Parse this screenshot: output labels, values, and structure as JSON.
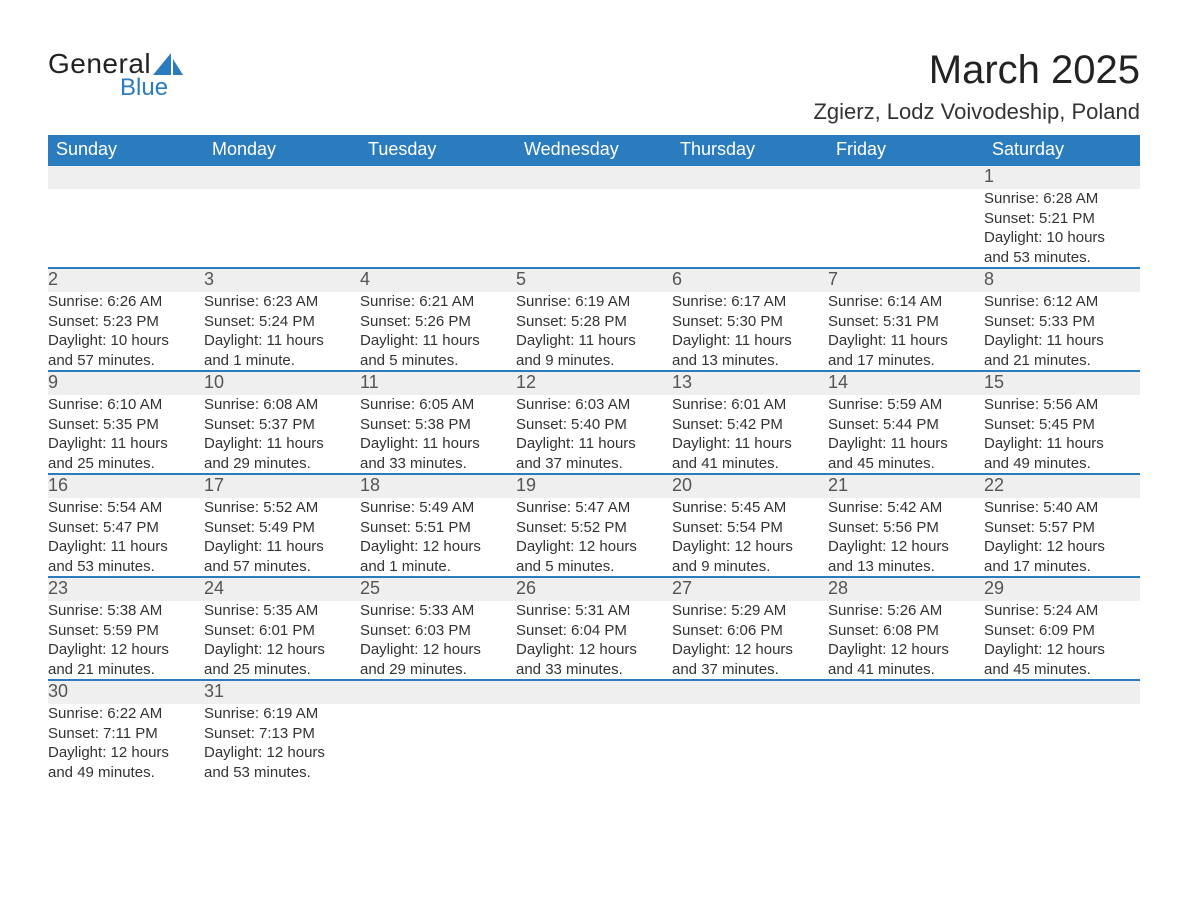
{
  "logo": {
    "general": "General",
    "blue": "Blue",
    "shape_color": "#2b7bbf"
  },
  "header": {
    "title": "March 2025",
    "location": "Zgierz, Lodz Voivodeship, Poland",
    "title_fontsize": 40,
    "location_fontsize": 22
  },
  "style": {
    "header_bg": "#2b7bbf",
    "header_text": "#ffffff",
    "daynum_bg": "#efefef",
    "daynum_border": "#2b7bbf",
    "body_text": "#333333",
    "background": "#ffffff",
    "font_family": "Arial, Helvetica, sans-serif",
    "th_fontsize": 18,
    "daynum_fontsize": 18,
    "detail_fontsize": 15
  },
  "weekdays": [
    "Sunday",
    "Monday",
    "Tuesday",
    "Wednesday",
    "Thursday",
    "Friday",
    "Saturday"
  ],
  "weeks": [
    [
      null,
      null,
      null,
      null,
      null,
      null,
      {
        "day": "1",
        "sunrise": "Sunrise: 6:28 AM",
        "sunset": "Sunset: 5:21 PM",
        "dl1": "Daylight: 10 hours",
        "dl2": "and 53 minutes."
      }
    ],
    [
      {
        "day": "2",
        "sunrise": "Sunrise: 6:26 AM",
        "sunset": "Sunset: 5:23 PM",
        "dl1": "Daylight: 10 hours",
        "dl2": "and 57 minutes."
      },
      {
        "day": "3",
        "sunrise": "Sunrise: 6:23 AM",
        "sunset": "Sunset: 5:24 PM",
        "dl1": "Daylight: 11 hours",
        "dl2": "and 1 minute."
      },
      {
        "day": "4",
        "sunrise": "Sunrise: 6:21 AM",
        "sunset": "Sunset: 5:26 PM",
        "dl1": "Daylight: 11 hours",
        "dl2": "and 5 minutes."
      },
      {
        "day": "5",
        "sunrise": "Sunrise: 6:19 AM",
        "sunset": "Sunset: 5:28 PM",
        "dl1": "Daylight: 11 hours",
        "dl2": "and 9 minutes."
      },
      {
        "day": "6",
        "sunrise": "Sunrise: 6:17 AM",
        "sunset": "Sunset: 5:30 PM",
        "dl1": "Daylight: 11 hours",
        "dl2": "and 13 minutes."
      },
      {
        "day": "7",
        "sunrise": "Sunrise: 6:14 AM",
        "sunset": "Sunset: 5:31 PM",
        "dl1": "Daylight: 11 hours",
        "dl2": "and 17 minutes."
      },
      {
        "day": "8",
        "sunrise": "Sunrise: 6:12 AM",
        "sunset": "Sunset: 5:33 PM",
        "dl1": "Daylight: 11 hours",
        "dl2": "and 21 minutes."
      }
    ],
    [
      {
        "day": "9",
        "sunrise": "Sunrise: 6:10 AM",
        "sunset": "Sunset: 5:35 PM",
        "dl1": "Daylight: 11 hours",
        "dl2": "and 25 minutes."
      },
      {
        "day": "10",
        "sunrise": "Sunrise: 6:08 AM",
        "sunset": "Sunset: 5:37 PM",
        "dl1": "Daylight: 11 hours",
        "dl2": "and 29 minutes."
      },
      {
        "day": "11",
        "sunrise": "Sunrise: 6:05 AM",
        "sunset": "Sunset: 5:38 PM",
        "dl1": "Daylight: 11 hours",
        "dl2": "and 33 minutes."
      },
      {
        "day": "12",
        "sunrise": "Sunrise: 6:03 AM",
        "sunset": "Sunset: 5:40 PM",
        "dl1": "Daylight: 11 hours",
        "dl2": "and 37 minutes."
      },
      {
        "day": "13",
        "sunrise": "Sunrise: 6:01 AM",
        "sunset": "Sunset: 5:42 PM",
        "dl1": "Daylight: 11 hours",
        "dl2": "and 41 minutes."
      },
      {
        "day": "14",
        "sunrise": "Sunrise: 5:59 AM",
        "sunset": "Sunset: 5:44 PM",
        "dl1": "Daylight: 11 hours",
        "dl2": "and 45 minutes."
      },
      {
        "day": "15",
        "sunrise": "Sunrise: 5:56 AM",
        "sunset": "Sunset: 5:45 PM",
        "dl1": "Daylight: 11 hours",
        "dl2": "and 49 minutes."
      }
    ],
    [
      {
        "day": "16",
        "sunrise": "Sunrise: 5:54 AM",
        "sunset": "Sunset: 5:47 PM",
        "dl1": "Daylight: 11 hours",
        "dl2": "and 53 minutes."
      },
      {
        "day": "17",
        "sunrise": "Sunrise: 5:52 AM",
        "sunset": "Sunset: 5:49 PM",
        "dl1": "Daylight: 11 hours",
        "dl2": "and 57 minutes."
      },
      {
        "day": "18",
        "sunrise": "Sunrise: 5:49 AM",
        "sunset": "Sunset: 5:51 PM",
        "dl1": "Daylight: 12 hours",
        "dl2": "and 1 minute."
      },
      {
        "day": "19",
        "sunrise": "Sunrise: 5:47 AM",
        "sunset": "Sunset: 5:52 PM",
        "dl1": "Daylight: 12 hours",
        "dl2": "and 5 minutes."
      },
      {
        "day": "20",
        "sunrise": "Sunrise: 5:45 AM",
        "sunset": "Sunset: 5:54 PM",
        "dl1": "Daylight: 12 hours",
        "dl2": "and 9 minutes."
      },
      {
        "day": "21",
        "sunrise": "Sunrise: 5:42 AM",
        "sunset": "Sunset: 5:56 PM",
        "dl1": "Daylight: 12 hours",
        "dl2": "and 13 minutes."
      },
      {
        "day": "22",
        "sunrise": "Sunrise: 5:40 AM",
        "sunset": "Sunset: 5:57 PM",
        "dl1": "Daylight: 12 hours",
        "dl2": "and 17 minutes."
      }
    ],
    [
      {
        "day": "23",
        "sunrise": "Sunrise: 5:38 AM",
        "sunset": "Sunset: 5:59 PM",
        "dl1": "Daylight: 12 hours",
        "dl2": "and 21 minutes."
      },
      {
        "day": "24",
        "sunrise": "Sunrise: 5:35 AM",
        "sunset": "Sunset: 6:01 PM",
        "dl1": "Daylight: 12 hours",
        "dl2": "and 25 minutes."
      },
      {
        "day": "25",
        "sunrise": "Sunrise: 5:33 AM",
        "sunset": "Sunset: 6:03 PM",
        "dl1": "Daylight: 12 hours",
        "dl2": "and 29 minutes."
      },
      {
        "day": "26",
        "sunrise": "Sunrise: 5:31 AM",
        "sunset": "Sunset: 6:04 PM",
        "dl1": "Daylight: 12 hours",
        "dl2": "and 33 minutes."
      },
      {
        "day": "27",
        "sunrise": "Sunrise: 5:29 AM",
        "sunset": "Sunset: 6:06 PM",
        "dl1": "Daylight: 12 hours",
        "dl2": "and 37 minutes."
      },
      {
        "day": "28",
        "sunrise": "Sunrise: 5:26 AM",
        "sunset": "Sunset: 6:08 PM",
        "dl1": "Daylight: 12 hours",
        "dl2": "and 41 minutes."
      },
      {
        "day": "29",
        "sunrise": "Sunrise: 5:24 AM",
        "sunset": "Sunset: 6:09 PM",
        "dl1": "Daylight: 12 hours",
        "dl2": "and 45 minutes."
      }
    ],
    [
      {
        "day": "30",
        "sunrise": "Sunrise: 6:22 AM",
        "sunset": "Sunset: 7:11 PM",
        "dl1": "Daylight: 12 hours",
        "dl2": "and 49 minutes."
      },
      {
        "day": "31",
        "sunrise": "Sunrise: 6:19 AM",
        "sunset": "Sunset: 7:13 PM",
        "dl1": "Daylight: 12 hours",
        "dl2": "and 53 minutes."
      },
      null,
      null,
      null,
      null,
      null
    ]
  ]
}
